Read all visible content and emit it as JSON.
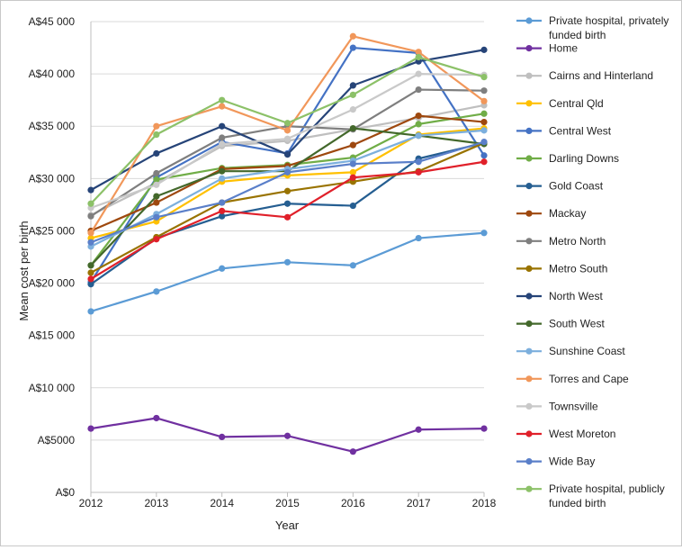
{
  "chart_data": {
    "type": "line",
    "xlabel": "Year",
    "ylabel": "Mean cost per birth",
    "x": [
      2012,
      2013,
      2014,
      2015,
      2016,
      2017,
      2018
    ],
    "ylim": [
      0,
      45000
    ],
    "yticks": [
      0,
      5000,
      10000,
      15000,
      20000,
      25000,
      30000,
      35000,
      40000,
      45000
    ],
    "ytick_labels": [
      "A$0",
      "A$5000",
      "A$10 000",
      "A$15 000",
      "A$20 000",
      "A$25 000",
      "A$30 000",
      "A$35 000",
      "A$40 000",
      "A$45 000"
    ],
    "grid": "horizontal",
    "legend_position": "right",
    "series": [
      {
        "name": "Private hospital, privately funded birth",
        "color": "#5b9bd5",
        "values": [
          17300,
          19200,
          21400,
          22000,
          21700,
          24300,
          24800
        ]
      },
      {
        "name": "Home",
        "color": "#7030a0",
        "values": [
          6100,
          7100,
          5300,
          5400,
          3900,
          6000,
          6100
        ]
      },
      {
        "name": "Cairns and Hinterland",
        "color": "#bfbfbf",
        "values": [
          26500,
          29600,
          33100,
          33600,
          34700,
          35800,
          37000
        ]
      },
      {
        "name": "Central Qld",
        "color": "#ffc000",
        "values": [
          24300,
          25900,
          29700,
          30300,
          30600,
          34200,
          34800
        ]
      },
      {
        "name": "Central West",
        "color": "#4472c4",
        "values": [
          20100,
          30100,
          33500,
          32400,
          42500,
          42000,
          32200
        ]
      },
      {
        "name": "Darling Downs",
        "color": "#70ad47",
        "values": [
          21700,
          29900,
          31000,
          31300,
          32000,
          35200,
          36200
        ]
      },
      {
        "name": "Gold Coast",
        "color": "#255e91",
        "values": [
          19900,
          24300,
          26400,
          27600,
          27400,
          31900,
          33400
        ]
      },
      {
        "name": "Mackay",
        "color": "#9e480e",
        "values": [
          25000,
          27700,
          30900,
          31200,
          33200,
          36000,
          35400
        ]
      },
      {
        "name": "Metro North",
        "color": "#7f7f7f",
        "values": [
          26400,
          30500,
          33900,
          35000,
          34700,
          38500,
          38400
        ]
      },
      {
        "name": "Metro South",
        "color": "#997300",
        "values": [
          21000,
          24400,
          27700,
          28800,
          29700,
          30700,
          33400
        ]
      },
      {
        "name": "North West",
        "color": "#264478",
        "values": [
          28900,
          32400,
          35000,
          32300,
          38900,
          41200,
          42300
        ]
      },
      {
        "name": "South West",
        "color": "#43682b",
        "values": [
          21700,
          28300,
          30700,
          30700,
          34800,
          34100,
          33300
        ]
      },
      {
        "name": "Sunshine Coast",
        "color": "#7cafdd",
        "values": [
          23500,
          26600,
          30000,
          30900,
          31700,
          34100,
          34600
        ]
      },
      {
        "name": "Torres and Cape",
        "color": "#f1975a",
        "values": [
          24800,
          35000,
          36900,
          34600,
          43600,
          42100,
          37400
        ]
      },
      {
        "name": "Townsville",
        "color": "#c9c9c9",
        "values": [
          27200,
          29400,
          33300,
          33800,
          36600,
          40000,
          39900
        ]
      },
      {
        "name": "West Moreton",
        "color": "#e0202a",
        "values": [
          20400,
          24200,
          26900,
          26300,
          30100,
          30600,
          31600
        ]
      },
      {
        "name": "Wide Bay",
        "color": "#5a7fc9",
        "values": [
          23900,
          26300,
          27700,
          30600,
          31400,
          31600,
          33500
        ]
      },
      {
        "name": "Private hospital, publicly funded birth",
        "color": "#8cc168",
        "values": [
          27600,
          34200,
          37500,
          35300,
          38000,
          41600,
          39700
        ]
      }
    ]
  }
}
